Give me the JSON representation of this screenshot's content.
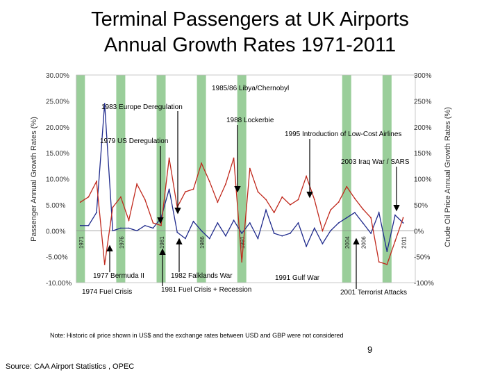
{
  "title_line1": "Terminal Passengers at UK Airports",
  "title_line2": "Annual Growth Rates 1971-2011",
  "note": "Note: Historic oil price shown in US$ and the exchange rates between USD and GBP were not considered",
  "page_number": "9",
  "source": "Source: CAA Airport Statistics , OPEC",
  "chart_data": {
    "type": "line",
    "ylabel": "Passenger Annual Growth Rates (%)",
    "y2label": "Crude Oil Price Annual Growth Rates (%)",
    "ylim": [
      -10,
      30
    ],
    "y2lim": [
      -100,
      300
    ],
    "yticks": [
      "30.00%",
      "25.00%",
      "20.00%",
      "15.00%",
      "10.00%",
      "5.00%",
      "0.00%",
      "-5.00%",
      "-10.00%"
    ],
    "y2ticks": [
      "300%",
      "250%",
      "200%",
      "150%",
      "100%",
      "50%",
      "0%",
      "-50%",
      "-100%"
    ],
    "xlim": [
      1970.5,
      2012.5
    ],
    "x": [
      1971,
      1972,
      1973,
      1974,
      1975,
      1976,
      1977,
      1978,
      1979,
      1980,
      1981,
      1982,
      1983,
      1984,
      1985,
      1986,
      1987,
      1988,
      1989,
      1990,
      1991,
      1992,
      1993,
      1994,
      1995,
      1996,
      1997,
      1998,
      1999,
      2000,
      2001,
      2002,
      2003,
      2004,
      2005,
      2006,
      2007,
      2008,
      2009,
      2010,
      2011
    ],
    "series": [
      {
        "color": "#1f2a8c",
        "axis": "right",
        "values": [
          10,
          10,
          35,
          245,
          0,
          5,
          5,
          0,
          10,
          5,
          25,
          80,
          -3,
          -15,
          18,
          0,
          -15,
          15,
          -10,
          20,
          -5,
          15,
          -15,
          40,
          -5,
          -10,
          -5,
          15,
          -30,
          5,
          -25,
          0,
          15,
          25,
          35,
          15,
          -5,
          35,
          -40,
          30,
          15
        ]
      },
      {
        "color": "#c0281c",
        "axis": "left",
        "values": [
          5.5,
          6.5,
          9.5,
          -6.5,
          4.5,
          6.5,
          2,
          9,
          6,
          1.5,
          1,
          14,
          4.5,
          7.5,
          8,
          13,
          9.5,
          5.5,
          9,
          14,
          -6,
          12,
          7.5,
          6,
          3.5,
          6.5,
          5,
          6,
          10.5,
          6,
          0,
          4,
          5.5,
          8.5,
          6.2,
          4.2,
          2.5,
          -6,
          -6.5,
          -2,
          2.5
        ]
      }
    ],
    "highlight_years": [
      1971,
      1976,
      1981,
      1986,
      1991,
      2004,
      2009
    ],
    "axis_year_labels": [
      "1971",
      "1976",
      "1981",
      "1986",
      "1991",
      "2004",
      "2006",
      "2011"
    ],
    "annotations": [
      {
        "text": "1985/86 Libya/Chernobyl",
        "year": 1986
      },
      {
        "text": "1983 Europe Deregulation",
        "year": 1983
      },
      {
        "text": "1988 Lockerbie",
        "year": 1988
      },
      {
        "text": "1995 Introduction of Low-Cost Airlines",
        "year": 1995
      },
      {
        "text": "1979 US Deregulation",
        "year": 1979
      },
      {
        "text": "2003 Iraq War / SARS",
        "year": 2003
      },
      {
        "text": "1977 Bermuda II",
        "year": 1977
      },
      {
        "text": "1982 Falklands War",
        "year": 1982
      },
      {
        "text": "1991 Gulf War",
        "year": 1991
      },
      {
        "text": "1974 Fuel Crisis",
        "year": 1974
      },
      {
        "text": "1981 Fuel Crisis + Recession",
        "year": 1981
      },
      {
        "text": "2001 Terrorist Attacks",
        "year": 2001
      }
    ]
  }
}
